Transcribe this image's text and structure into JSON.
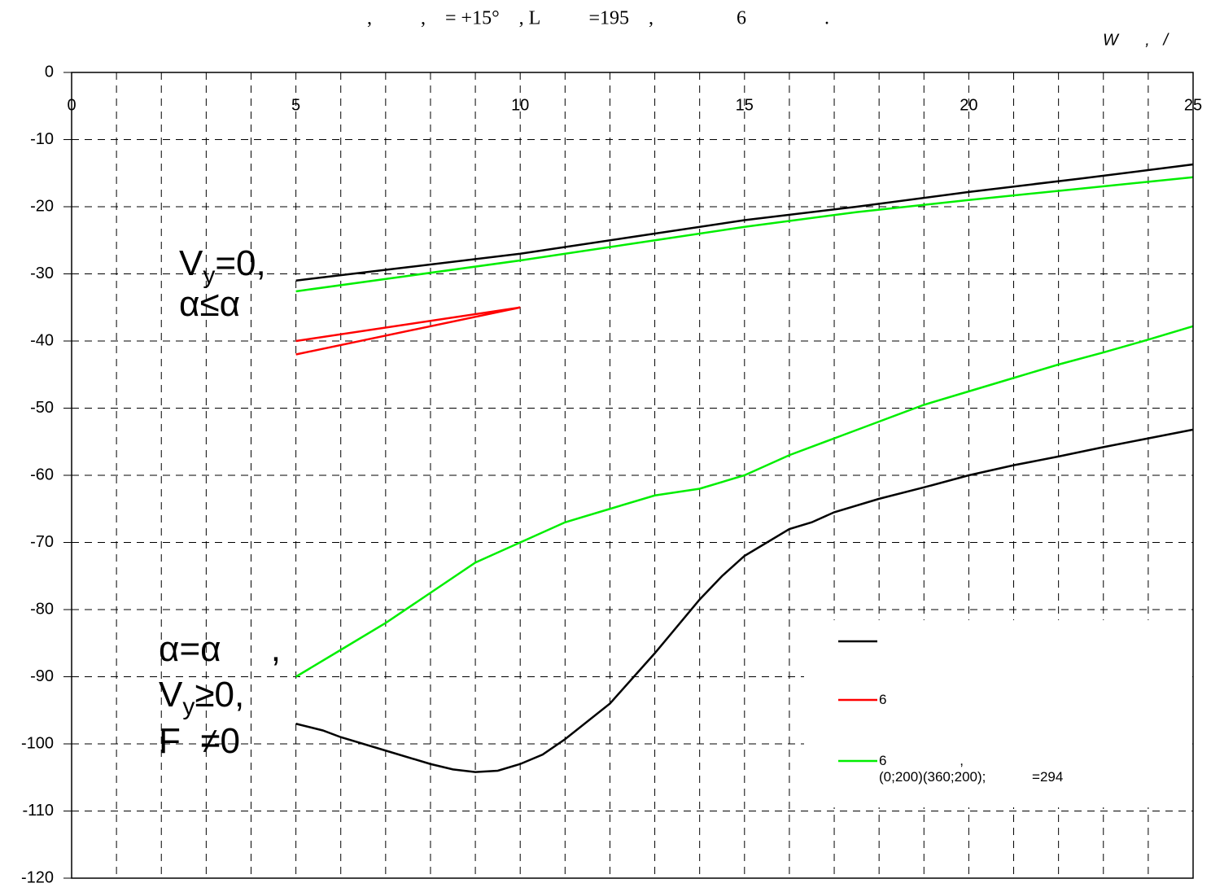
{
  "chart_data": {
    "type": "line",
    "title": ",          ,    = +15°    , L          =195    ,                 6                .",
    "x_label": "W      ,   /",
    "xlim": [
      0,
      25
    ],
    "xticks": [
      0,
      5,
      10,
      15,
      20,
      25
    ],
    "xgrid": [
      1,
      2,
      3,
      4,
      5,
      6,
      7,
      8,
      9,
      10,
      11,
      12,
      13,
      14,
      15,
      16,
      17,
      18,
      19,
      20,
      21,
      22,
      23,
      24
    ],
    "ylim": [
      -120,
      0
    ],
    "yticks": [
      0,
      -10,
      -20,
      -30,
      -40,
      -50,
      -60,
      -70,
      -80,
      -90,
      -100,
      -110,
      -120
    ],
    "grid": true,
    "annotations": [
      {
        "main": "V",
        "sub": "y",
        "tail": "=0,"
      },
      {
        "main": "α≤α"
      },
      {
        "main": "α=α     ,"
      },
      {
        "main": "V",
        "sub": "y",
        "tail": "≥0,"
      },
      {
        "main": "F  ≠0"
      }
    ],
    "series": [
      {
        "color": "#000000",
        "x": [
          5,
          7.5,
          10,
          12.5,
          15,
          17.5,
          20,
          22.5,
          25
        ],
        "values": [
          -31,
          -29,
          -27,
          -24.5,
          -22,
          -20,
          -17.8,
          -15.8,
          -13.7
        ]
      },
      {
        "name": "6",
        "color": "#ff0000",
        "x": [
          5,
          10,
          5
        ],
        "values": [
          -40,
          -35,
          -42
        ]
      },
      {
        "name": "6                   ,\n(0;200)(360;200);            =294",
        "color": "#00ee00",
        "x": [
          5,
          7.5,
          10,
          12.5,
          15,
          17.5,
          20,
          22.5,
          25
        ],
        "values": [
          -32.6,
          -30.3,
          -28,
          -25.5,
          -23,
          -20.8,
          -19,
          -17.3,
          -15.6
        ]
      },
      {
        "color": "#00ee00",
        "x": [
          5,
          6,
          7,
          8,
          9,
          10,
          11,
          12,
          13,
          14,
          15,
          16,
          17,
          18,
          19,
          20,
          21,
          22,
          23,
          24,
          25
        ],
        "values": [
          -90,
          -86,
          -82,
          -77.5,
          -73,
          -70,
          -67,
          -65,
          -63,
          -62,
          -60,
          -57,
          -54.5,
          -52,
          -49.5,
          -47.5,
          -45.5,
          -43.5,
          -41.7,
          -39.8,
          -37.8
        ]
      },
      {
        "color": "#000000",
        "x": [
          5,
          5.6,
          6,
          7,
          8,
          8.5,
          9,
          9.5,
          10,
          10.5,
          11,
          12,
          13,
          14,
          14.5,
          15,
          16,
          16.5,
          17,
          18,
          19,
          20,
          21,
          22,
          23,
          24,
          25
        ],
        "values": [
          -97,
          -98,
          -99,
          -101,
          -103,
          -103.8,
          -104.2,
          -104,
          -103,
          -101.6,
          -99.3,
          -94,
          -86.5,
          -78.5,
          -75,
          -72,
          -68,
          -67,
          -65.5,
          -63.5,
          -61.8,
          -60,
          -58.5,
          -57.2,
          -55.8,
          -54.5,
          -53.2
        ]
      }
    ]
  }
}
